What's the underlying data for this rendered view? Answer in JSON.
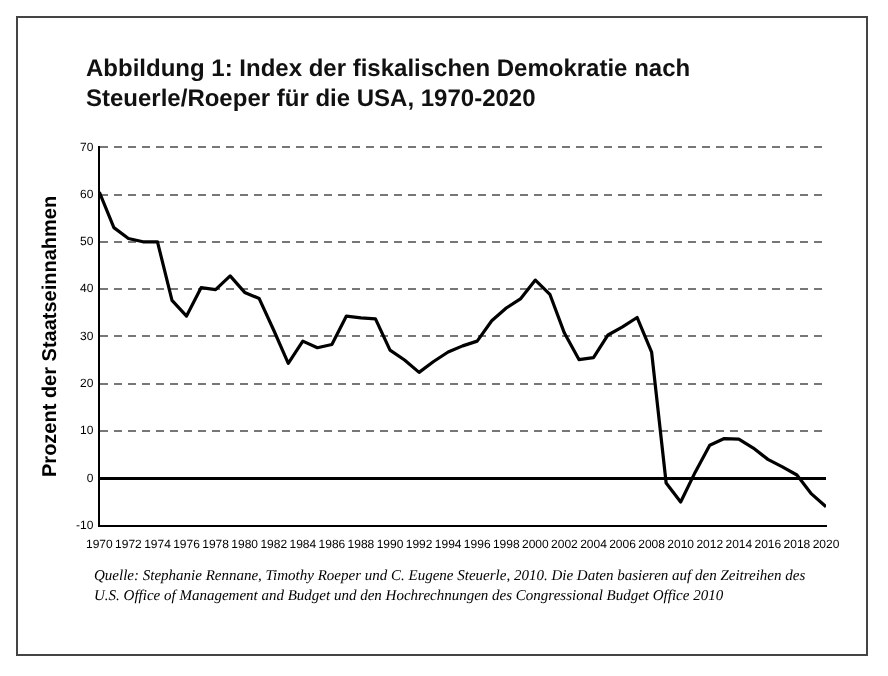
{
  "chart_data": {
    "type": "line",
    "title": "Abbildung 1:  Index der fiskalischen Demokratie nach Steuerle/Roeper für die USA, 1970-2020",
    "ylabel": "Prozent der Staatseinnahmen",
    "annotations": [
      "Quelle: Stephanie Rennane, Timothy Roeper und C. Eugene Steuerle, 2010. Die Daten basieren auf den Zeitreihen des U.S. Office of Management and Budget und den Hochrechnungen des Congressional Budget Office 2010"
    ],
    "x": [
      1970,
      1971,
      1972,
      1973,
      1974,
      1975,
      1976,
      1977,
      1978,
      1979,
      1980,
      1981,
      1982,
      1983,
      1984,
      1985,
      1986,
      1987,
      1988,
      1989,
      1990,
      1991,
      1992,
      1993,
      1994,
      1995,
      1996,
      1997,
      1998,
      1999,
      2000,
      2001,
      2002,
      2003,
      2004,
      2005,
      2006,
      2007,
      2008,
      2009,
      2010,
      2011,
      2012,
      2013,
      2014,
      2015,
      2016,
      2017,
      2018,
      2019,
      2020
    ],
    "series": [
      {
        "color": "#000000",
        "values": [
          60.5,
          53,
          50.7,
          50,
          50,
          37.6,
          34.3,
          40.3,
          39.9,
          42.8,
          39.3,
          38,
          31.3,
          24.3,
          29,
          27.6,
          28.3,
          34.3,
          33.9,
          33.7,
          27.1,
          25,
          22.4,
          24.7,
          26.7,
          28,
          29,
          33.3,
          36,
          38,
          41.9,
          38.9,
          30.7,
          25.1,
          25.5,
          30.3,
          32,
          34,
          26.7,
          -1,
          -5,
          1.3,
          7,
          8.4,
          8.3,
          6.4,
          4,
          2.4,
          0.7,
          -3.3,
          -6
        ]
      }
    ],
    "xlim": [
      1970,
      2020
    ],
    "xticks": [
      1970,
      1972,
      1974,
      1976,
      1978,
      1980,
      1982,
      1984,
      1986,
      1988,
      1990,
      1992,
      1994,
      1996,
      1998,
      2000,
      2002,
      2004,
      2006,
      2008,
      2010,
      2012,
      2014,
      2016,
      2018,
      2020
    ],
    "ylim": [
      -10,
      70
    ],
    "yticks": [
      -10,
      0,
      10,
      20,
      30,
      40,
      50,
      60,
      70
    ],
    "grid": "y",
    "legend": false,
    "marker": "none",
    "line_style": "solid"
  }
}
